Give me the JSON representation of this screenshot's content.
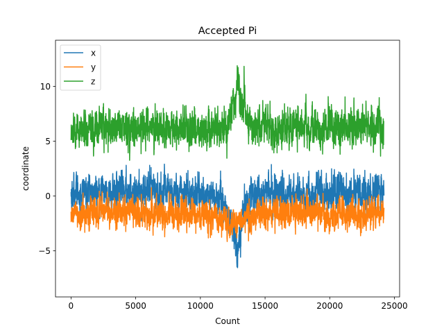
{
  "chart_data": {
    "type": "line",
    "title": "Accepted Pi",
    "xlabel": "Count",
    "ylabel": "coordinate",
    "xlim": [
      -1200,
      25400
    ],
    "ylim": [
      -9.2,
      14.2
    ],
    "xticks": [
      0,
      5000,
      10000,
      15000,
      20000,
      25000
    ],
    "xtick_labels": [
      "0",
      "5000",
      "10000",
      "15000",
      "20000",
      "25000"
    ],
    "yticks": [
      -5,
      0,
      5,
      10
    ],
    "ytick_labels": [
      "−5",
      "0",
      "5",
      "10"
    ],
    "grid": false,
    "legend_position": "top-left",
    "n_points": 24200,
    "series": [
      {
        "name": "x",
        "color": "#1f77b4",
        "profile": [
          [
            0,
            0.2
          ],
          [
            1000,
            0.3
          ],
          [
            2000,
            0.2
          ],
          [
            3000,
            0.3
          ],
          [
            4000,
            0.4
          ],
          [
            5000,
            0.5
          ],
          [
            6000,
            0.4
          ],
          [
            7000,
            0.3
          ],
          [
            8000,
            0.4
          ],
          [
            9000,
            0.3
          ],
          [
            10000,
            0.2
          ],
          [
            11000,
            0.0
          ],
          [
            11800,
            -0.8
          ],
          [
            12300,
            -2.5
          ],
          [
            12600,
            -3.5
          ],
          [
            12900,
            -5.0
          ],
          [
            13100,
            -3.0
          ],
          [
            13500,
            -0.8
          ],
          [
            14000,
            0.0
          ],
          [
            15000,
            0.3
          ],
          [
            16000,
            0.3
          ],
          [
            17000,
            0.2
          ],
          [
            18000,
            0.3
          ],
          [
            19000,
            0.2
          ],
          [
            20000,
            0.2
          ],
          [
            21000,
            0.3
          ],
          [
            22000,
            0.2
          ],
          [
            23000,
            0.3
          ],
          [
            24000,
            0.4
          ],
          [
            24200,
            0.3
          ]
        ],
        "noise": 1.15,
        "range": [
          -8.2,
          4.2
        ]
      },
      {
        "name": "y",
        "color": "#ff7f0e",
        "profile": [
          [
            0,
            -1.6
          ],
          [
            2000,
            -1.5
          ],
          [
            4000,
            -1.4
          ],
          [
            6000,
            -1.5
          ],
          [
            8000,
            -1.6
          ],
          [
            10000,
            -1.7
          ],
          [
            11500,
            -1.9
          ],
          [
            12300,
            -2.4
          ],
          [
            12800,
            -3.0
          ],
          [
            13200,
            -2.2
          ],
          [
            14000,
            -1.7
          ],
          [
            16000,
            -1.5
          ],
          [
            18000,
            -1.4
          ],
          [
            20000,
            -1.5
          ],
          [
            22000,
            -1.6
          ],
          [
            24200,
            -1.4
          ]
        ],
        "noise": 0.95,
        "range": [
          -5.5,
          1.8
        ]
      },
      {
        "name": "z",
        "color": "#2ca02c",
        "profile": [
          [
            0,
            5.8
          ],
          [
            1000,
            6.0
          ],
          [
            2000,
            6.3
          ],
          [
            3000,
            6.4
          ],
          [
            4000,
            6.3
          ],
          [
            5000,
            6.5
          ],
          [
            6000,
            6.4
          ],
          [
            7000,
            6.3
          ],
          [
            8000,
            6.2
          ],
          [
            9000,
            6.1
          ],
          [
            10000,
            6.0
          ],
          [
            11000,
            6.0
          ],
          [
            12000,
            6.2
          ],
          [
            12500,
            7.5
          ],
          [
            12900,
            10.5
          ],
          [
            13200,
            9.0
          ],
          [
            13600,
            6.8
          ],
          [
            14500,
            6.2
          ],
          [
            16000,
            6.0
          ],
          [
            18000,
            6.2
          ],
          [
            20000,
            6.3
          ],
          [
            22000,
            6.4
          ],
          [
            24200,
            6.3
          ]
        ],
        "noise": 1.2,
        "range": [
          3.0,
          13.4
        ]
      }
    ]
  }
}
